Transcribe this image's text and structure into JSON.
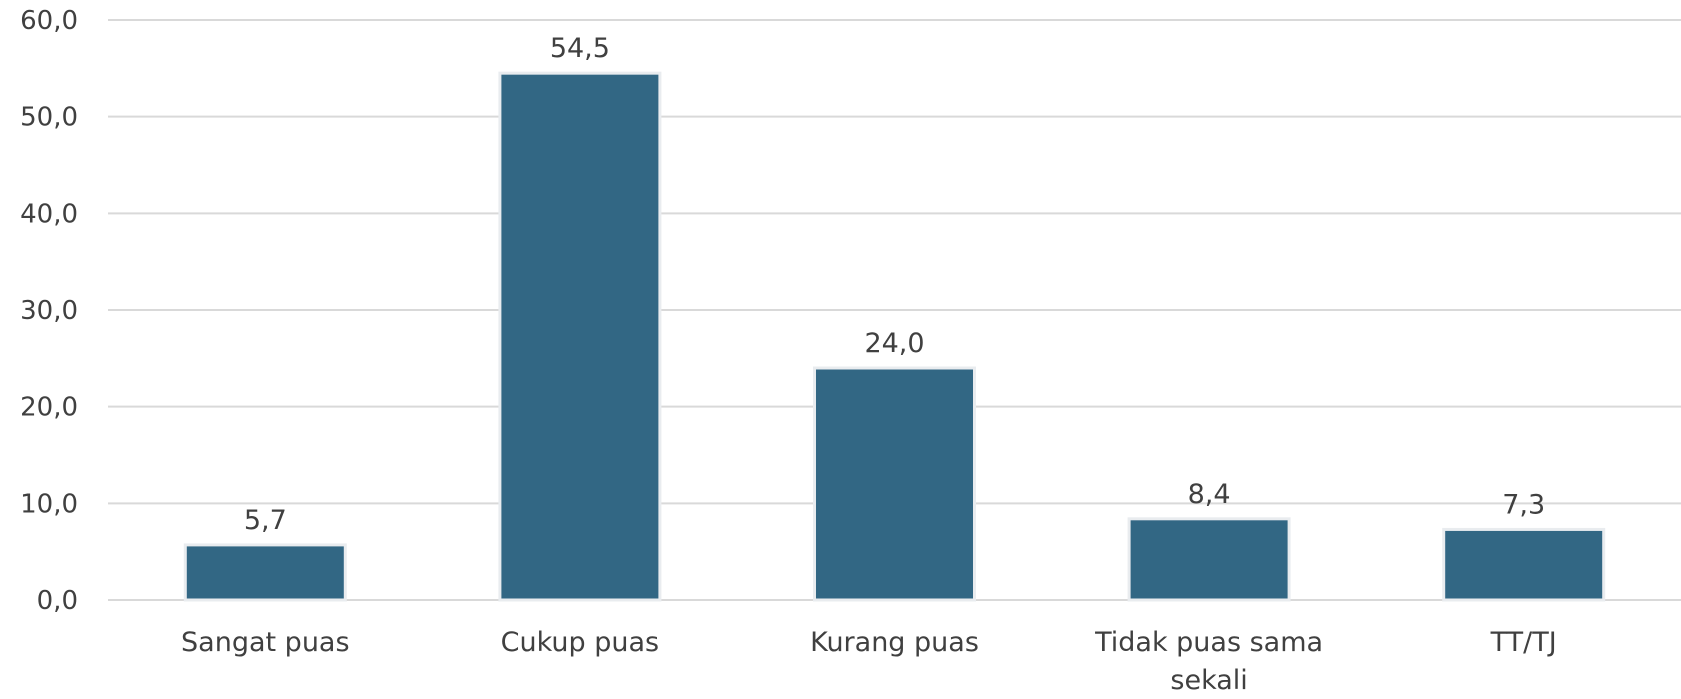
{
  "chart_data": {
    "type": "bar",
    "categories": [
      [
        "Sangat puas"
      ],
      [
        "Cukup puas"
      ],
      [
        "Kurang puas"
      ],
      [
        "Tidak puas sama",
        "sekali"
      ],
      [
        "TT/TJ"
      ]
    ],
    "values": [
      5.7,
      54.5,
      24.0,
      8.4,
      7.3
    ],
    "value_labels": [
      "5,7",
      "54,5",
      "24,0",
      "8,4",
      "7,3"
    ],
    "y_ticks": [
      0,
      10,
      20,
      30,
      40,
      50,
      60
    ],
    "y_tick_labels": [
      "0,0",
      "10,0",
      "20,0",
      "30,0",
      "40,0",
      "50,0",
      "60,0"
    ],
    "ylim": [
      0,
      60
    ],
    "grid": true,
    "legend": "none",
    "bar_color": "#326784",
    "title": "",
    "xlabel": "",
    "ylabel": ""
  }
}
